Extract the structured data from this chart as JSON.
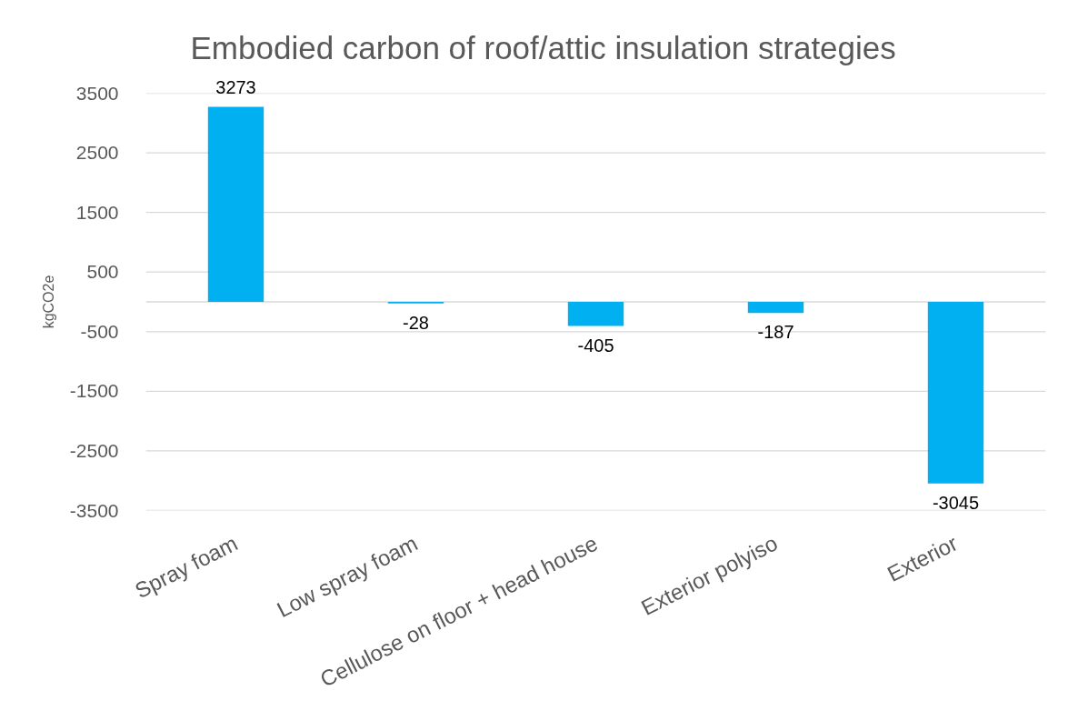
{
  "chart_data": {
    "type": "bar",
    "title": "Embodied carbon of roof/attic insulation strategies",
    "ylabel": "kgCO2e",
    "categories": [
      "Spray foam",
      "Low spray foam",
      "Cellulose on floor + head house",
      "Exterior polyiso",
      "Exterior"
    ],
    "values": [
      3273,
      -28,
      -405,
      -187,
      -3045
    ],
    "color": "#00b0f0",
    "ylim": [
      -3500,
      3500
    ],
    "yticks": [
      -3500,
      -2500,
      -1500,
      -500,
      {
        "value": 0,
        "label": null
      },
      500,
      1500,
      2500,
      3500
    ],
    "grid": "y",
    "data_labels": true
  }
}
